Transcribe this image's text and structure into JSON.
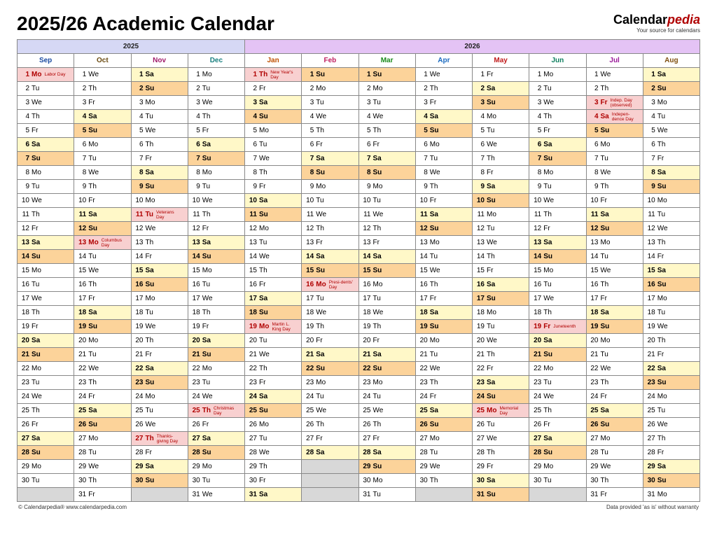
{
  "title": "2025/26 Academic Calendar",
  "brand": {
    "name_a": "Calendar",
    "name_b": "pedia",
    "sub": "Your source for calendars"
  },
  "footer_left": "© Calendarpedia®   www.calendarpedia.com",
  "footer_right": "Data provided 'as is' without warranty",
  "years": {
    "y25": "2025",
    "y26": "2026"
  },
  "colors": {
    "year25_bg": "#d6d8f5",
    "year26_bg": "#e4c3f5",
    "sat_bg": "#fff8c8",
    "sun_bg": "#fcd39a",
    "hol_bg": "#f8d0d0",
    "hol_text": "#b00000",
    "blank_bg": "#d8d8d8",
    "border": "#888888",
    "bg": "#ffffff",
    "cell_fontsize": 10,
    "month_fontsize": 12,
    "year_fontsize": 14,
    "title_fontsize": 28
  },
  "months": [
    {
      "key": "sep",
      "label": "Sep",
      "year": "y25",
      "first_dow": 1,
      "days": 30
    },
    {
      "key": "oct",
      "label": "Oct",
      "year": "y25",
      "first_dow": 3,
      "days": 31
    },
    {
      "key": "nov",
      "label": "Nov",
      "year": "y25",
      "first_dow": 6,
      "days": 30
    },
    {
      "key": "dec",
      "label": "Dec",
      "year": "y25",
      "first_dow": 1,
      "days": 31
    },
    {
      "key": "jan",
      "label": "Jan",
      "year": "y26",
      "first_dow": 4,
      "days": 31
    },
    {
      "key": "feb",
      "label": "Feb",
      "year": "y26",
      "first_dow": 0,
      "days": 28
    },
    {
      "key": "mar",
      "label": "Mar",
      "year": "y26",
      "first_dow": 0,
      "days": 31
    },
    {
      "key": "apr",
      "label": "Apr",
      "year": "y26",
      "first_dow": 3,
      "days": 30
    },
    {
      "key": "may",
      "label": "May",
      "year": "y26",
      "first_dow": 5,
      "days": 31
    },
    {
      "key": "jun",
      "label": "Jun",
      "year": "y26",
      "first_dow": 1,
      "days": 30
    },
    {
      "key": "jul",
      "label": "Jul",
      "year": "y26",
      "first_dow": 3,
      "days": 31
    },
    {
      "key": "aug",
      "label": "Aug",
      "year": "y26",
      "first_dow": 6,
      "days": 31
    }
  ],
  "dow_abbr": [
    "Su",
    "Mo",
    "Tu",
    "We",
    "Th",
    "Fr",
    "Sa"
  ],
  "holidays": {
    "sep": {
      "1": "Labor Day"
    },
    "oct": {
      "13": "Columbus Day"
    },
    "nov": {
      "11": "Veterans Day",
      "27": "Thanks-giving Day"
    },
    "dec": {
      "25": "Christmas Day"
    },
    "jan": {
      "1": "New Year's Day",
      "19": "Martin L. King Day"
    },
    "feb": {
      "16": "Presi-dents' Day"
    },
    "may": {
      "25": "Memorial Day"
    },
    "jun": {
      "19": "Juneteenth"
    },
    "jul": {
      "3": "Indep. Day (observed)",
      "4": "Indepen-dence Day"
    }
  },
  "max_rows": 31
}
